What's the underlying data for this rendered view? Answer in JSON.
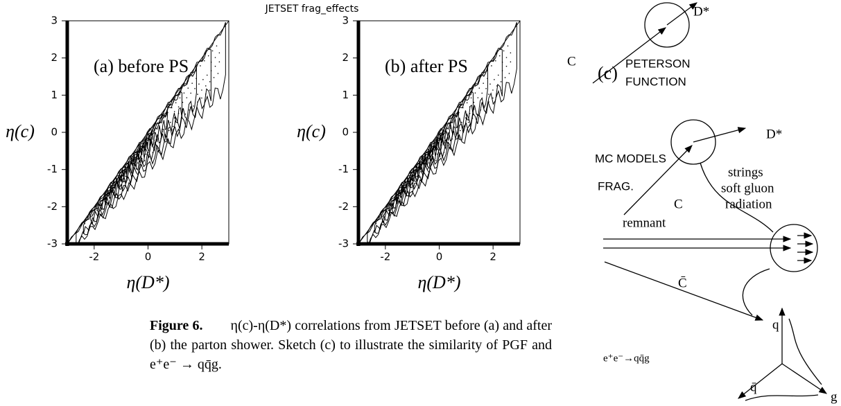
{
  "figure_title": "JETSET frag_effects",
  "chart_data": [
    {
      "type": "contour",
      "panel_label": "(a) before PS",
      "x_label": "η(D*)",
      "y_label": "η(c)",
      "xlim": [
        -3,
        3
      ],
      "ylim": [
        -3,
        3
      ],
      "xticks": [
        -2,
        0,
        2
      ],
      "yticks": [
        -3,
        -2,
        -1,
        0,
        1,
        2,
        3
      ]
    },
    {
      "type": "contour",
      "panel_label": "(b) after PS",
      "x_label": "η(D*)",
      "y_label": "η(c)",
      "xlim": [
        -3,
        3
      ],
      "ylim": [
        -3,
        3
      ],
      "xticks": [
        -2,
        0,
        2
      ],
      "yticks": [
        -3,
        -2,
        -1,
        0,
        1,
        2,
        3
      ]
    }
  ],
  "sketch": {
    "label": "(c)",
    "peterson": {
      "meson": "D*",
      "quark": "C",
      "line1": "PETERSON",
      "line2": "FUNCTION"
    },
    "mc": {
      "line1": "MC MODELS",
      "line2": "FRAG.",
      "meson": "D*",
      "quark": "C",
      "strings": "strings",
      "gluon1": "soft gluon",
      "gluon2": "radiation",
      "remnant": "remnant",
      "antiquark": "C̄"
    },
    "ee": {
      "process": "e⁺e⁻→qq̄g",
      "q": "q",
      "qbar": "q̄",
      "g": "g"
    }
  },
  "caption": {
    "label": "Figure 6.",
    "text": "η(c)-η(D*) correlations from JETSET before (a) and after (b) the parton shower. Sketch (c) to illustrate the similarity of PGF and e⁺e⁻ → qq̄g."
  }
}
